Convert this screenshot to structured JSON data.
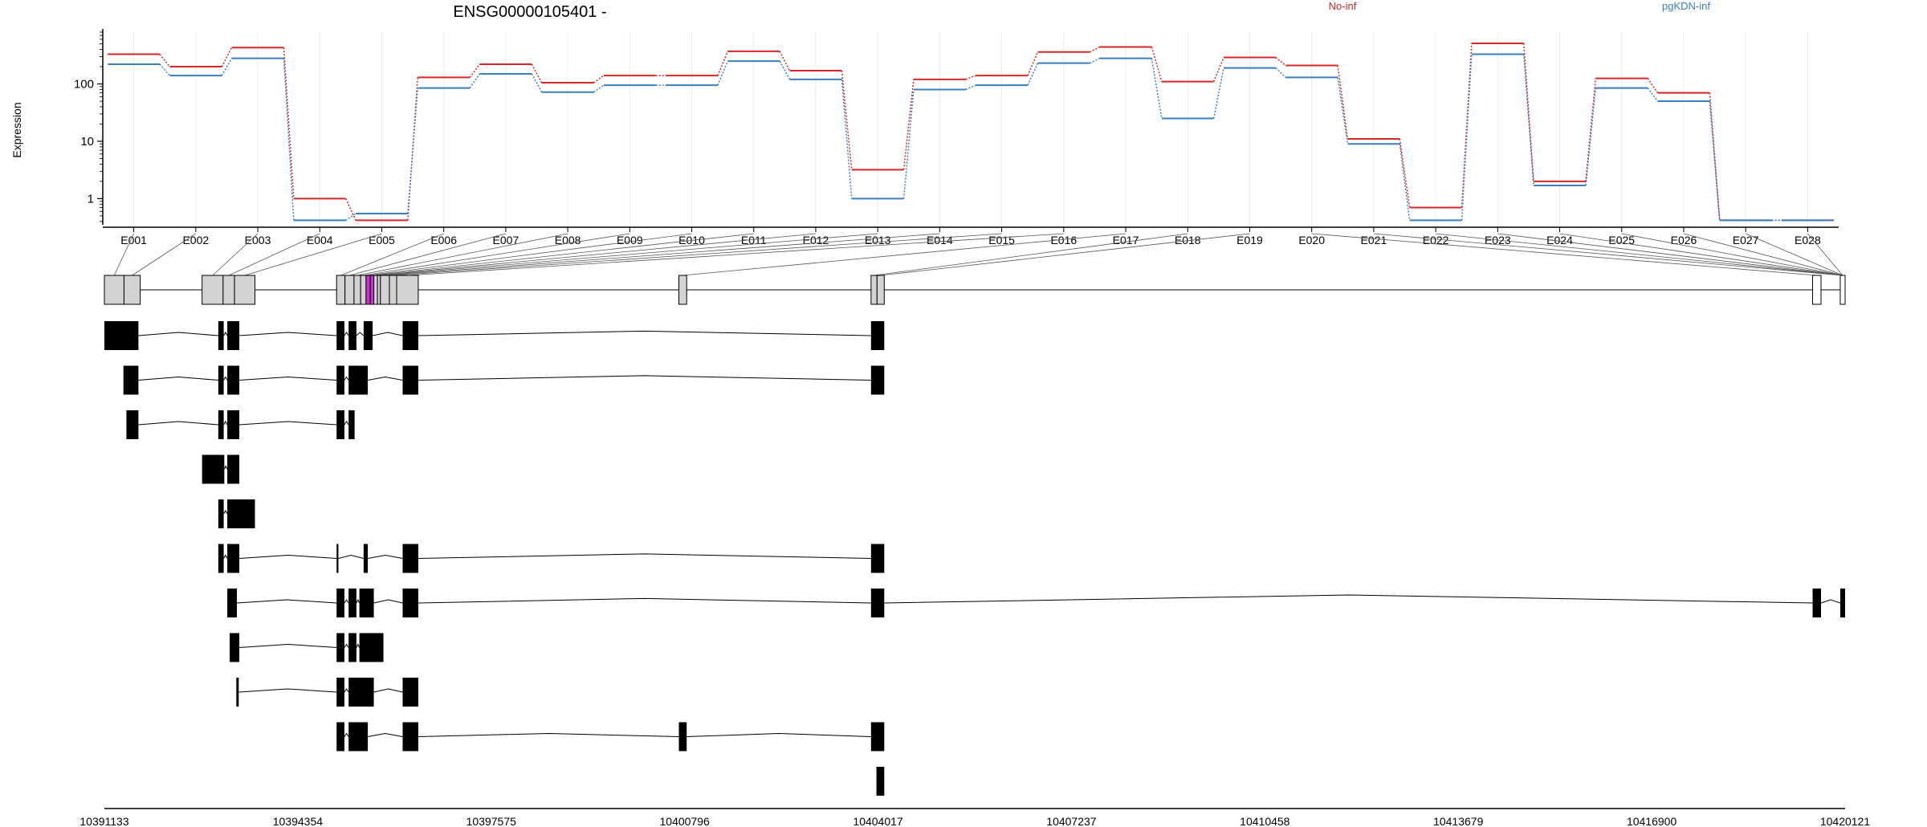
{
  "title": "ENSG00000105401 -",
  "legend": [
    {
      "name": "No-inf",
      "color": "#d62728"
    },
    {
      "name": "pgKDN-inf",
      "color": "#3a7fc0"
    }
  ],
  "chart_data": {
    "type": "line",
    "title": "ENSG00000105401 -",
    "ylabel": "Expression",
    "yscale": "log",
    "ylim": [
      0.35,
      800
    ],
    "yticks": [
      1,
      10,
      100
    ],
    "ytick_labels": [
      "1",
      "10",
      "100"
    ],
    "grid": true,
    "legend_position": "top",
    "categories": [
      "E001",
      "E002",
      "E003",
      "E004",
      "E005",
      "E006",
      "E007",
      "E008",
      "E009",
      "E010",
      "E011",
      "E012",
      "E013",
      "E014",
      "E015",
      "E016",
      "E017",
      "E018",
      "E019",
      "E020",
      "E021",
      "E022",
      "E023",
      "E024",
      "E025",
      "E026",
      "E027",
      "E028"
    ],
    "series": [
      {
        "name": "No-inf",
        "color": "#d62728",
        "values": [
          330,
          200,
          430,
          1.0,
          0.42,
          130,
          220,
          105,
          140,
          140,
          370,
          170,
          3.2,
          120,
          140,
          360,
          440,
          110,
          290,
          210,
          11,
          0.7,
          510,
          2.0,
          125,
          70,
          0.42,
          0.42
        ]
      },
      {
        "name": "pgKDN-inf",
        "color": "#3a7fc0",
        "values": [
          220,
          140,
          280,
          0.42,
          0.55,
          85,
          150,
          72,
          95,
          95,
          250,
          120,
          1.0,
          80,
          95,
          230,
          280,
          25,
          190,
          130,
          9,
          0.42,
          330,
          1.7,
          85,
          50,
          0.42,
          0.42
        ]
      }
    ],
    "genomic_axis": {
      "ticks": [
        "10391133",
        "10394354",
        "10397575",
        "10400796",
        "10404017",
        "10407237",
        "10410458",
        "10413679",
        "10416900",
        "10420121"
      ],
      "range": [
        10391133,
        10420121
      ]
    },
    "exons": [
      [
        10391133,
        10391700
      ],
      [
        10391700,
        10391733
      ],
      [
        10391733,
        10391700
      ],
      [
        10392760,
        10393080
      ],
      [
        10393080,
        10393130
      ],
      [
        10393130,
        10393270
      ],
      [
        10393270,
        10393300
      ],
      [
        10393300,
        10393640
      ],
      [
        10395000,
        10395130
      ],
      [
        10395130,
        10395290
      ],
      [
        10395290,
        10395380
      ],
      [
        10395380,
        10395430
      ],
      [
        10395430,
        10395480
      ],
      [
        10395480,
        10395640
      ],
      [
        10395640,
        10395880
      ],
      [
        10395880,
        10396000
      ],
      [
        10396000,
        10396360
      ],
      [
        10400700,
        10400830
      ],
      [
        10403900,
        10404000
      ],
      [
        10404000,
        10404120
      ],
      [
        10419580,
        10419720
      ],
      [
        10420040,
        10420121
      ]
    ],
    "exon_map": [
      [
        10391133,
        10391460
      ],
      [
        10391460,
        10391730
      ],
      [
        10392760,
        10393110
      ],
      [
        10393110,
        10393300
      ],
      [
        10393300,
        10393640
      ],
      [
        10395000,
        10395140
      ],
      [
        10395140,
        10395290
      ],
      [
        10395290,
        10395400
      ],
      [
        10395400,
        10395490
      ],
      [
        10395490,
        10395560
      ],
      [
        10395560,
        10395620
      ],
      [
        10395620,
        10395680
      ],
      [
        10395680,
        10395730
      ],
      [
        10395730,
        10395880
      ],
      [
        10395880,
        10396000
      ],
      [
        10396000,
        10396360
      ],
      [
        10400700,
        10400830
      ],
      [
        10403900,
        10404000
      ],
      [
        10404000,
        10404120
      ],
      [
        10419580,
        10419720
      ],
      [
        10420040,
        10420121
      ]
    ],
    "transcripts": [
      [
        [
          10391133,
          10391700
        ],
        [
          10393030,
          10393120
        ],
        [
          10393180,
          10393380
        ],
        [
          10395000,
          10395130
        ],
        [
          10395200,
          10395330
        ],
        [
          10395450,
          10395600
        ],
        [
          10396100,
          10396360
        ],
        [
          10403900,
          10404120
        ]
      ],
      [
        [
          10391450,
          10391700
        ],
        [
          10393030,
          10393120
        ],
        [
          10393180,
          10393380
        ],
        [
          10395000,
          10395130
        ],
        [
          10395200,
          10395520
        ],
        [
          10396100,
          10396360
        ],
        [
          10403900,
          10404120
        ]
      ],
      [
        [
          10391500,
          10391700
        ],
        [
          10393030,
          10393120
        ],
        [
          10393180,
          10393380
        ],
        [
          10395000,
          10395130
        ],
        [
          10395200,
          10395300
        ]
      ],
      [
        [
          10392760,
          10393130
        ],
        [
          10393180,
          10393380
        ]
      ],
      [
        [
          10393030,
          10393120
        ],
        [
          10393180,
          10393640
        ]
      ],
      [
        [
          10393030,
          10393120
        ],
        [
          10393180,
          10393380
        ],
        [
          10395000,
          10395030
        ],
        [
          10395450,
          10395520
        ],
        [
          10396100,
          10396360
        ],
        [
          10403900,
          10404120
        ]
      ],
      [
        [
          10393180,
          10393340
        ],
        [
          10395000,
          10395130
        ],
        [
          10395200,
          10395330
        ],
        [
          10395380,
          10395620
        ],
        [
          10396100,
          10396360
        ],
        [
          10403900,
          10404120
        ],
        [
          10419580,
          10419720
        ],
        [
          10420040,
          10420121
        ]
      ],
      [
        [
          10393220,
          10393380
        ],
        [
          10395000,
          10395130
        ],
        [
          10395200,
          10395330
        ],
        [
          10395380,
          10395780
        ]
      ],
      [
        [
          10393330,
          10393370
        ],
        [
          10395000,
          10395130
        ],
        [
          10395200,
          10395620
        ],
        [
          10396100,
          10396360
        ]
      ],
      [
        [
          10395000,
          10395130
        ],
        [
          10395200,
          10395520
        ],
        [
          10396100,
          10396360
        ],
        [
          10400700,
          10400830
        ],
        [
          10403900,
          10404120
        ]
      ],
      [
        [
          10403990,
          10404120
        ]
      ]
    ]
  }
}
